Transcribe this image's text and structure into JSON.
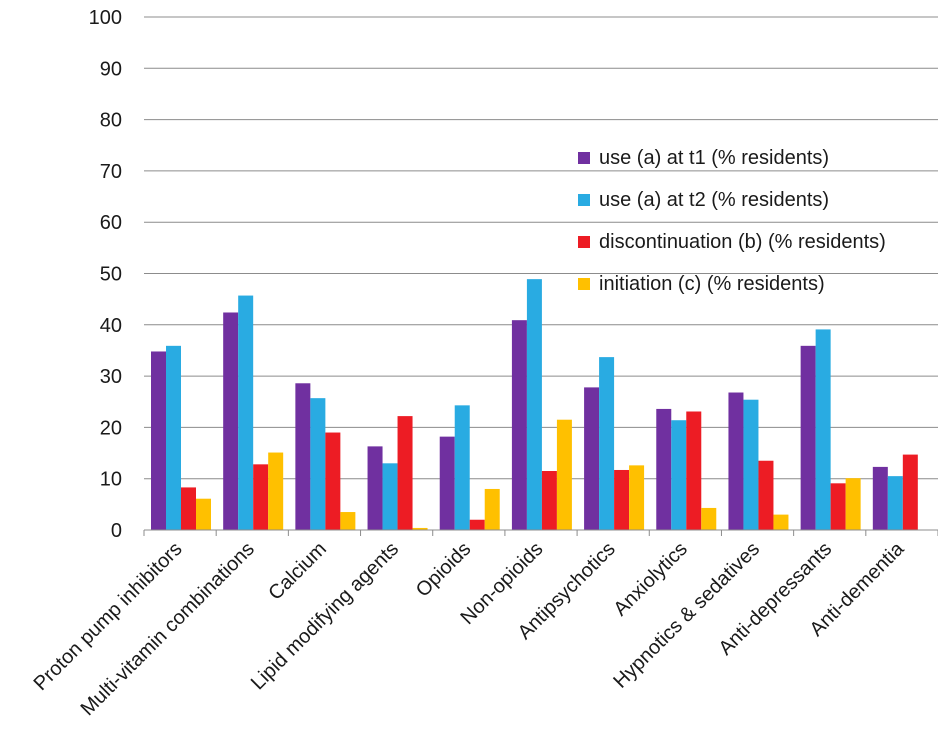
{
  "chart_data": {
    "type": "bar",
    "title": "",
    "xlabel": "",
    "ylabel": "",
    "ylim": [
      0,
      100
    ],
    "yticks": [
      0,
      10,
      20,
      30,
      40,
      50,
      60,
      70,
      80,
      90,
      100
    ],
    "grid": true,
    "legend_position": "right",
    "categories": [
      "Proton pump inhibitors",
      "Multi-vitamin combinations",
      "Calcium",
      "Lipid modifying agents",
      "Opioids",
      "Non-opioids",
      "Antipsychotics",
      "Anxiolytics",
      "Hypnotics & sedatives",
      "Anti-depressants",
      "Anti-dementia"
    ],
    "series": [
      {
        "name": "use (a) at t1 (% residents)",
        "color": "#7030a0",
        "values": [
          34.8,
          42.4,
          28.6,
          16.3,
          18.2,
          40.9,
          27.8,
          23.6,
          26.8,
          35.9,
          12.3
        ]
      },
      {
        "name": "use (a) at t2 (% residents)",
        "color": "#29abe2",
        "values": [
          35.9,
          45.7,
          25.7,
          13.0,
          24.3,
          48.9,
          33.7,
          21.4,
          25.4,
          39.1,
          10.5
        ]
      },
      {
        "name": "discontinuation (b) (% residents)",
        "color": "#ed1c24",
        "values": [
          8.3,
          12.8,
          19.0,
          22.2,
          2.0,
          11.5,
          11.7,
          23.1,
          13.5,
          9.1,
          14.7
        ]
      },
      {
        "name": "initiation (c) (% residents)",
        "color": "#ffc000",
        "values": [
          6.1,
          15.1,
          3.5,
          0.4,
          8.0,
          21.5,
          12.6,
          4.3,
          3.0,
          10.1,
          0.0
        ]
      }
    ]
  }
}
